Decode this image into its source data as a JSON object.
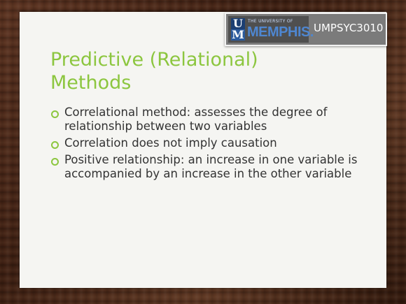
{
  "header": {
    "university_line": "THE UNIVERSITY OF",
    "university_name": "MEMPHIS.",
    "um_letters": [
      "U",
      "M"
    ],
    "course_code": "UMPSYC3010"
  },
  "slide": {
    "title": "Predictive (Relational) Methods",
    "bullets": [
      {
        "text": "Correlational method: assesses the degree of relationship between two variables"
      },
      {
        "text": "Correlation does not imply causation"
      },
      {
        "text": "Positive relationship: an increase in one variable is accompanied by an increase in the other variable"
      }
    ]
  },
  "colors": {
    "accent": "#8cc63f",
    "text": "#333333",
    "memphis_blue": "#4e86d0",
    "logo_bg": "#7b7b7b"
  },
  "icons": {
    "bullet": "ring-bullet-icon"
  }
}
